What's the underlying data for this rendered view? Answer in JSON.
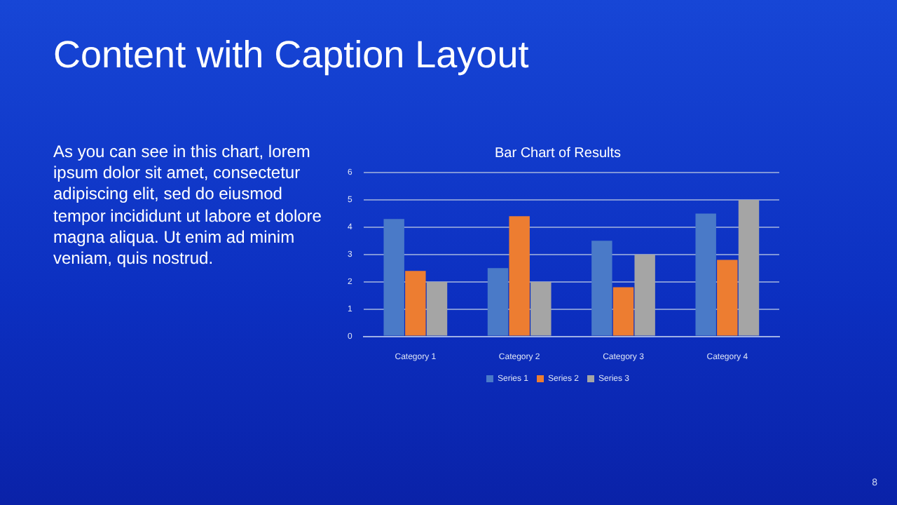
{
  "chart_data": {
    "type": "bar",
    "title": "Bar Chart of Results",
    "categories": [
      "Category 1",
      "Category 2",
      "Category 3",
      "Category 4"
    ],
    "series": [
      {
        "name": "Series 1",
        "color": "#4a7ac8",
        "values": [
          4.3,
          2.5,
          3.5,
          4.5
        ]
      },
      {
        "name": "Series 2",
        "color": "#ed7d31",
        "values": [
          2.4,
          4.4,
          1.8,
          2.8
        ]
      },
      {
        "name": "Series 3",
        "color": "#a5a5a5",
        "values": [
          2,
          2,
          3,
          5
        ]
      }
    ],
    "ylim": [
      0,
      6
    ],
    "yticks": [
      0,
      1,
      2,
      3,
      4,
      5,
      6
    ],
    "grid": "y",
    "legend": "bottom",
    "annotations": [
      "Content with Caption Layout",
      "As you can see in this chart, lorem ipsum dolor sit amet, consectetur adipiscing elit, sed do eiusmod tempor incididunt ut labore et dolore magna aliqua. Ut enim ad minim veniam, quis nostrud.",
      "8"
    ]
  }
}
